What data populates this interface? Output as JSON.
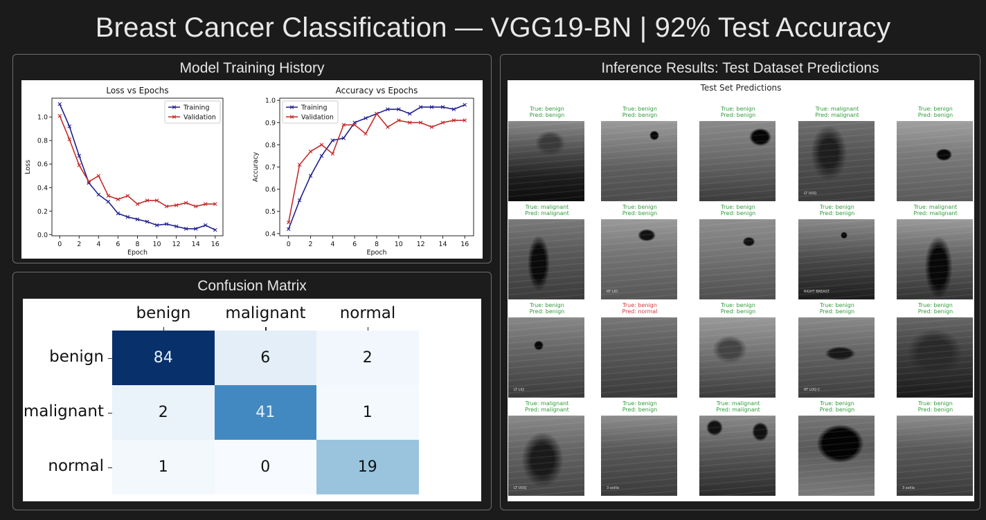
{
  "header": {
    "title": "Breast Cancer Classification — VGG19-BN | 92% Test Accuracy"
  },
  "panels": {
    "training": {
      "title": "Model Training History"
    },
    "confusion": {
      "title": "Confusion Matrix"
    },
    "inference": {
      "title": "Inference Results: Test Dataset Predictions"
    }
  },
  "colors": {
    "background": "#1b1b1b",
    "panel_border": "#6e6e6e",
    "training_line": "#1f1f8f",
    "validation_line": "#c22a2a",
    "correct_label": "#2e9a3a",
    "wrong_label": "#d9343a"
  },
  "chart_data": [
    {
      "type": "line",
      "title": "Loss vs Epochs",
      "xlabel": "Epoch",
      "ylabel": "Loss",
      "x": [
        0,
        1,
        2,
        3,
        4,
        5,
        6,
        7,
        8,
        9,
        10,
        11,
        12,
        13,
        14,
        15,
        16
      ],
      "xticks": [
        "0",
        "2",
        "4",
        "6",
        "8",
        "10",
        "12",
        "14",
        "16"
      ],
      "yticks": [
        "0.0",
        "0.2",
        "0.4",
        "0.6",
        "0.8",
        "1.0"
      ],
      "ylim": [
        -0.01,
        1.16
      ],
      "xlim": [
        -0.8,
        16.8
      ],
      "legend": {
        "position": "upper right",
        "entries": [
          "Training",
          "Validation"
        ]
      },
      "grid": false,
      "series": [
        {
          "name": "Training",
          "values": [
            1.11,
            0.92,
            0.67,
            0.44,
            0.34,
            0.28,
            0.18,
            0.15,
            0.13,
            0.11,
            0.08,
            0.09,
            0.07,
            0.05,
            0.05,
            0.08,
            0.04
          ]
        },
        {
          "name": "Validation",
          "values": [
            1.01,
            0.81,
            0.59,
            0.45,
            0.5,
            0.33,
            0.3,
            0.33,
            0.26,
            0.29,
            0.29,
            0.24,
            0.25,
            0.27,
            0.24,
            0.26,
            0.26
          ]
        }
      ]
    },
    {
      "type": "line",
      "title": "Accuracy vs Epochs",
      "xlabel": "Epoch",
      "ylabel": "Accuracy",
      "x": [
        0,
        1,
        2,
        3,
        4,
        5,
        6,
        7,
        8,
        9,
        10,
        11,
        12,
        13,
        14,
        15,
        16
      ],
      "xticks": [
        "0",
        "2",
        "4",
        "6",
        "8",
        "10",
        "12",
        "14",
        "16"
      ],
      "yticks": [
        "0.4",
        "0.5",
        "0.6",
        "0.7",
        "0.8",
        "0.9",
        "1.0"
      ],
      "ylim": [
        0.39,
        1.01
      ],
      "xlim": [
        -0.8,
        16.8
      ],
      "legend": {
        "position": "upper left",
        "entries": [
          "Training",
          "Validation"
        ]
      },
      "grid": false,
      "series": [
        {
          "name": "Training",
          "values": [
            0.42,
            0.55,
            0.66,
            0.75,
            0.82,
            0.83,
            0.9,
            0.92,
            0.94,
            0.96,
            0.96,
            0.94,
            0.97,
            0.97,
            0.97,
            0.96,
            0.98
          ]
        },
        {
          "name": "Validation",
          "values": [
            0.45,
            0.71,
            0.77,
            0.8,
            0.76,
            0.89,
            0.89,
            0.85,
            0.94,
            0.88,
            0.91,
            0.9,
            0.9,
            0.88,
            0.9,
            0.91,
            0.91
          ]
        }
      ]
    },
    {
      "type": "heatmap",
      "title": "Confusion Matrix",
      "x_labels": [
        "benign",
        "malignant",
        "normal"
      ],
      "y_labels": [
        "benign",
        "malignant",
        "normal"
      ],
      "values": [
        [
          84,
          6,
          2
        ],
        [
          2,
          41,
          1
        ],
        [
          1,
          0,
          19
        ]
      ],
      "colormap": "Blues"
    }
  ],
  "confusion": {
    "cols": [
      "benign",
      "malignant",
      "normal"
    ],
    "rows": [
      "benign",
      "malignant",
      "normal"
    ],
    "cells": [
      [
        {
          "v": "84",
          "bg": "#08306b",
          "fg": "#e8f0fa"
        },
        {
          "v": "6",
          "bg": "#e3eef8",
          "fg": "#111"
        },
        {
          "v": "2",
          "bg": "#f2f7fd",
          "fg": "#111"
        }
      ],
      [
        {
          "v": "2",
          "bg": "#eaf2fa",
          "fg": "#111"
        },
        {
          "v": "41",
          "bg": "#4289c2",
          "fg": "#e8f0fa"
        },
        {
          "v": "1",
          "bg": "#f4f9fe",
          "fg": "#111"
        }
      ],
      [
        {
          "v": "1",
          "bg": "#f3f8fd",
          "fg": "#111"
        },
        {
          "v": "0",
          "bg": "#f7fbff",
          "fg": "#111"
        },
        {
          "v": "19",
          "bg": "#9ac4de",
          "fg": "#111"
        }
      ]
    ]
  },
  "predictions": {
    "title": "Test Set Predictions",
    "items": [
      {
        "true": "True: benign",
        "pred": "Pred: benign",
        "correct": true
      },
      {
        "true": "True: benign",
        "pred": "Pred: benign",
        "correct": true
      },
      {
        "true": "True: benign",
        "pred": "Pred: benign",
        "correct": true
      },
      {
        "true": "True: malignant",
        "pred": "Pred: malignant",
        "correct": true
      },
      {
        "true": "True: benign",
        "pred": "Pred: benign",
        "correct": true
      },
      {
        "true": "True: malignant",
        "pred": "Pred: malignant",
        "correct": true
      },
      {
        "true": "True: benign",
        "pred": "Pred: benign",
        "correct": true
      },
      {
        "true": "True: benign",
        "pred": "Pred: benign",
        "correct": true
      },
      {
        "true": "True: benign",
        "pred": "Pred: benign",
        "correct": true
      },
      {
        "true": "True: malignant",
        "pred": "Pred: malignant",
        "correct": true
      },
      {
        "true": "True: benign",
        "pred": "Pred: benign",
        "correct": true
      },
      {
        "true": "True: benign",
        "pred": "Pred: normal",
        "correct": false
      },
      {
        "true": "True: benign",
        "pred": "Pred: benign",
        "correct": true
      },
      {
        "true": "True: benign",
        "pred": "Pred: benign",
        "correct": true
      },
      {
        "true": "True: benign",
        "pred": "Pred: benign",
        "correct": true
      },
      {
        "true": "True: malignant",
        "pred": "Pred: malignant",
        "correct": true
      },
      {
        "true": "True: benign",
        "pred": "Pred: benign",
        "correct": true
      },
      {
        "true": "True: malignant",
        "pred": "Pred: malignant",
        "correct": true
      },
      {
        "true": "True: benign",
        "pred": "Pred: benign",
        "correct": true
      },
      {
        "true": "True: benign",
        "pred": "Pred: benign",
        "correct": true
      }
    ],
    "image_annotations": [
      "",
      "",
      "",
      "LT UOQ",
      "",
      "",
      "RT LIO",
      "",
      "RIGHT BREAST",
      "",
      "LT LIQ",
      "",
      "",
      "RT LOQ C",
      "",
      "LT UOQ",
      "3 axilla",
      "",
      "",
      "3 axilla"
    ]
  }
}
